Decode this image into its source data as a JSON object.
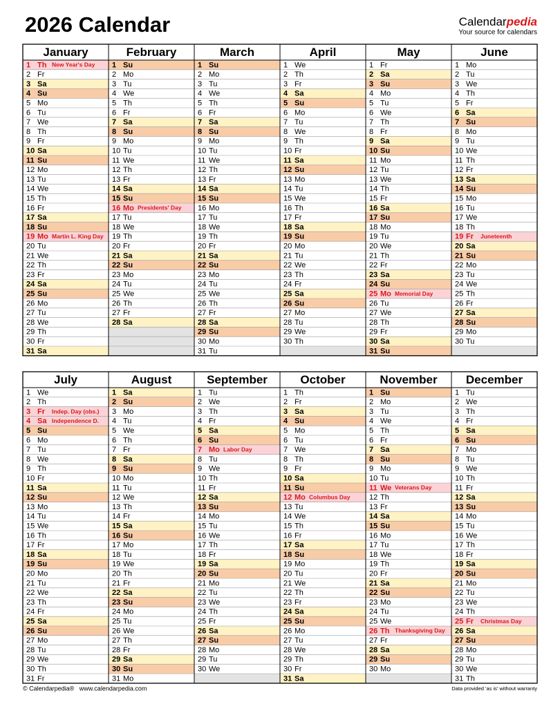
{
  "header": {
    "title": "2026 Calendar",
    "brand": "Calendar",
    "brand_accent": "pedia",
    "tagline": "Your source for calendars"
  },
  "colors": {
    "Sa": "#fff2c4",
    "Su": "#f9cca8",
    "holiday": "#fbd3d6",
    "holiday_text": "#d7191c",
    "empty": "#e3e3e3"
  },
  "months": [
    {
      "name": "January",
      "days": [
        [
          1,
          "Th",
          "New Year's Day"
        ],
        [
          2,
          "Fr"
        ],
        [
          3,
          "Sa"
        ],
        [
          4,
          "Su"
        ],
        [
          5,
          "Mo"
        ],
        [
          6,
          "Tu"
        ],
        [
          7,
          "We"
        ],
        [
          8,
          "Th"
        ],
        [
          9,
          "Fr"
        ],
        [
          10,
          "Sa"
        ],
        [
          11,
          "Su"
        ],
        [
          12,
          "Mo"
        ],
        [
          13,
          "Tu"
        ],
        [
          14,
          "We"
        ],
        [
          15,
          "Th"
        ],
        [
          16,
          "Fr"
        ],
        [
          17,
          "Sa"
        ],
        [
          18,
          "Su"
        ],
        [
          19,
          "Mo",
          "Martin L. King Day"
        ],
        [
          20,
          "Tu"
        ],
        [
          21,
          "We"
        ],
        [
          22,
          "Th"
        ],
        [
          23,
          "Fr"
        ],
        [
          24,
          "Sa"
        ],
        [
          25,
          "Su"
        ],
        [
          26,
          "Mo"
        ],
        [
          27,
          "Tu"
        ],
        [
          28,
          "We"
        ],
        [
          29,
          "Th"
        ],
        [
          30,
          "Fr"
        ],
        [
          31,
          "Sa"
        ]
      ]
    },
    {
      "name": "February",
      "days": [
        [
          1,
          "Su"
        ],
        [
          2,
          "Mo"
        ],
        [
          3,
          "Tu"
        ],
        [
          4,
          "We"
        ],
        [
          5,
          "Th"
        ],
        [
          6,
          "Fr"
        ],
        [
          7,
          "Sa"
        ],
        [
          8,
          "Su"
        ],
        [
          9,
          "Mo"
        ],
        [
          10,
          "Tu"
        ],
        [
          11,
          "We"
        ],
        [
          12,
          "Th"
        ],
        [
          13,
          "Fr"
        ],
        [
          14,
          "Sa"
        ],
        [
          15,
          "Su"
        ],
        [
          16,
          "Mo",
          "Presidents' Day"
        ],
        [
          17,
          "Tu"
        ],
        [
          18,
          "We"
        ],
        [
          19,
          "Th"
        ],
        [
          20,
          "Fr"
        ],
        [
          21,
          "Sa"
        ],
        [
          22,
          "Su"
        ],
        [
          23,
          "Mo"
        ],
        [
          24,
          "Tu"
        ],
        [
          25,
          "We"
        ],
        [
          26,
          "Th"
        ],
        [
          27,
          "Fr"
        ],
        [
          28,
          "Sa"
        ]
      ]
    },
    {
      "name": "March",
      "days": [
        [
          1,
          "Su"
        ],
        [
          2,
          "Mo"
        ],
        [
          3,
          "Tu"
        ],
        [
          4,
          "We"
        ],
        [
          5,
          "Th"
        ],
        [
          6,
          "Fr"
        ],
        [
          7,
          "Sa"
        ],
        [
          8,
          "Su"
        ],
        [
          9,
          "Mo"
        ],
        [
          10,
          "Tu"
        ],
        [
          11,
          "We"
        ],
        [
          12,
          "Th"
        ],
        [
          13,
          "Fr"
        ],
        [
          14,
          "Sa"
        ],
        [
          15,
          "Su"
        ],
        [
          16,
          "Mo"
        ],
        [
          17,
          "Tu"
        ],
        [
          18,
          "We"
        ],
        [
          19,
          "Th"
        ],
        [
          20,
          "Fr"
        ],
        [
          21,
          "Sa"
        ],
        [
          22,
          "Su"
        ],
        [
          23,
          "Mo"
        ],
        [
          24,
          "Tu"
        ],
        [
          25,
          "We"
        ],
        [
          26,
          "Th"
        ],
        [
          27,
          "Fr"
        ],
        [
          28,
          "Sa"
        ],
        [
          29,
          "Su"
        ],
        [
          30,
          "Mo"
        ],
        [
          31,
          "Tu"
        ]
      ]
    },
    {
      "name": "April",
      "days": [
        [
          1,
          "We"
        ],
        [
          2,
          "Th"
        ],
        [
          3,
          "Fr"
        ],
        [
          4,
          "Sa"
        ],
        [
          5,
          "Su"
        ],
        [
          6,
          "Mo"
        ],
        [
          7,
          "Tu"
        ],
        [
          8,
          "We"
        ],
        [
          9,
          "Th"
        ],
        [
          10,
          "Fr"
        ],
        [
          11,
          "Sa"
        ],
        [
          12,
          "Su"
        ],
        [
          13,
          "Mo"
        ],
        [
          14,
          "Tu"
        ],
        [
          15,
          "We"
        ],
        [
          16,
          "Th"
        ],
        [
          17,
          "Fr"
        ],
        [
          18,
          "Sa"
        ],
        [
          19,
          "Su"
        ],
        [
          20,
          "Mo"
        ],
        [
          21,
          "Tu"
        ],
        [
          22,
          "We"
        ],
        [
          23,
          "Th"
        ],
        [
          24,
          "Fr"
        ],
        [
          25,
          "Sa"
        ],
        [
          26,
          "Su"
        ],
        [
          27,
          "Mo"
        ],
        [
          28,
          "Tu"
        ],
        [
          29,
          "We"
        ],
        [
          30,
          "Th"
        ]
      ]
    },
    {
      "name": "May",
      "days": [
        [
          1,
          "Fr"
        ],
        [
          2,
          "Sa"
        ],
        [
          3,
          "Su"
        ],
        [
          4,
          "Mo"
        ],
        [
          5,
          "Tu"
        ],
        [
          6,
          "We"
        ],
        [
          7,
          "Th"
        ],
        [
          8,
          "Fr"
        ],
        [
          9,
          "Sa"
        ],
        [
          10,
          "Su"
        ],
        [
          11,
          "Mo"
        ],
        [
          12,
          "Tu"
        ],
        [
          13,
          "We"
        ],
        [
          14,
          "Th"
        ],
        [
          15,
          "Fr"
        ],
        [
          16,
          "Sa"
        ],
        [
          17,
          "Su"
        ],
        [
          18,
          "Mo"
        ],
        [
          19,
          "Tu"
        ],
        [
          20,
          "We"
        ],
        [
          21,
          "Th"
        ],
        [
          22,
          "Fr"
        ],
        [
          23,
          "Sa"
        ],
        [
          24,
          "Su"
        ],
        [
          25,
          "Mo",
          "Memorial Day"
        ],
        [
          26,
          "Tu"
        ],
        [
          27,
          "We"
        ],
        [
          28,
          "Th"
        ],
        [
          29,
          "Fr"
        ],
        [
          30,
          "Sa"
        ],
        [
          31,
          "Su"
        ]
      ]
    },
    {
      "name": "June",
      "days": [
        [
          1,
          "Mo"
        ],
        [
          2,
          "Tu"
        ],
        [
          3,
          "We"
        ],
        [
          4,
          "Th"
        ],
        [
          5,
          "Fr"
        ],
        [
          6,
          "Sa"
        ],
        [
          7,
          "Su"
        ],
        [
          8,
          "Mo"
        ],
        [
          9,
          "Tu"
        ],
        [
          10,
          "We"
        ],
        [
          11,
          "Th"
        ],
        [
          12,
          "Fr"
        ],
        [
          13,
          "Sa"
        ],
        [
          14,
          "Su"
        ],
        [
          15,
          "Mo"
        ],
        [
          16,
          "Tu"
        ],
        [
          17,
          "We"
        ],
        [
          18,
          "Th"
        ],
        [
          19,
          "Fr",
          "Juneteenth"
        ],
        [
          20,
          "Sa"
        ],
        [
          21,
          "Su"
        ],
        [
          22,
          "Mo"
        ],
        [
          23,
          "Tu"
        ],
        [
          24,
          "We"
        ],
        [
          25,
          "Th"
        ],
        [
          26,
          "Fr"
        ],
        [
          27,
          "Sa"
        ],
        [
          28,
          "Su"
        ],
        [
          29,
          "Mo"
        ],
        [
          30,
          "Tu"
        ]
      ]
    },
    {
      "name": "July",
      "days": [
        [
          1,
          "We"
        ],
        [
          2,
          "Th"
        ],
        [
          3,
          "Fr",
          "Indep. Day (obs.)"
        ],
        [
          4,
          "Sa",
          "Independence D."
        ],
        [
          5,
          "Su"
        ],
        [
          6,
          "Mo"
        ],
        [
          7,
          "Tu"
        ],
        [
          8,
          "We"
        ],
        [
          9,
          "Th"
        ],
        [
          10,
          "Fr"
        ],
        [
          11,
          "Sa"
        ],
        [
          12,
          "Su"
        ],
        [
          13,
          "Mo"
        ],
        [
          14,
          "Tu"
        ],
        [
          15,
          "We"
        ],
        [
          16,
          "Th"
        ],
        [
          17,
          "Fr"
        ],
        [
          18,
          "Sa"
        ],
        [
          19,
          "Su"
        ],
        [
          20,
          "Mo"
        ],
        [
          21,
          "Tu"
        ],
        [
          22,
          "We"
        ],
        [
          23,
          "Th"
        ],
        [
          24,
          "Fr"
        ],
        [
          25,
          "Sa"
        ],
        [
          26,
          "Su"
        ],
        [
          27,
          "Mo"
        ],
        [
          28,
          "Tu"
        ],
        [
          29,
          "We"
        ],
        [
          30,
          "Th"
        ],
        [
          31,
          "Fr"
        ]
      ]
    },
    {
      "name": "August",
      "days": [
        [
          1,
          "Sa"
        ],
        [
          2,
          "Su"
        ],
        [
          3,
          "Mo"
        ],
        [
          4,
          "Tu"
        ],
        [
          5,
          "We"
        ],
        [
          6,
          "Th"
        ],
        [
          7,
          "Fr"
        ],
        [
          8,
          "Sa"
        ],
        [
          9,
          "Su"
        ],
        [
          10,
          "Mo"
        ],
        [
          11,
          "Tu"
        ],
        [
          12,
          "We"
        ],
        [
          13,
          "Th"
        ],
        [
          14,
          "Fr"
        ],
        [
          15,
          "Sa"
        ],
        [
          16,
          "Su"
        ],
        [
          17,
          "Mo"
        ],
        [
          18,
          "Tu"
        ],
        [
          19,
          "We"
        ],
        [
          20,
          "Th"
        ],
        [
          21,
          "Fr"
        ],
        [
          22,
          "Sa"
        ],
        [
          23,
          "Su"
        ],
        [
          24,
          "Mo"
        ],
        [
          25,
          "Tu"
        ],
        [
          26,
          "We"
        ],
        [
          27,
          "Th"
        ],
        [
          28,
          "Fr"
        ],
        [
          29,
          "Sa"
        ],
        [
          30,
          "Su"
        ],
        [
          31,
          "Mo"
        ]
      ]
    },
    {
      "name": "September",
      "days": [
        [
          1,
          "Tu"
        ],
        [
          2,
          "We"
        ],
        [
          3,
          "Th"
        ],
        [
          4,
          "Fr"
        ],
        [
          5,
          "Sa"
        ],
        [
          6,
          "Su"
        ],
        [
          7,
          "Mo",
          "Labor Day"
        ],
        [
          8,
          "Tu"
        ],
        [
          9,
          "We"
        ],
        [
          10,
          "Th"
        ],
        [
          11,
          "Fr"
        ],
        [
          12,
          "Sa"
        ],
        [
          13,
          "Su"
        ],
        [
          14,
          "Mo"
        ],
        [
          15,
          "Tu"
        ],
        [
          16,
          "We"
        ],
        [
          17,
          "Th"
        ],
        [
          18,
          "Fr"
        ],
        [
          19,
          "Sa"
        ],
        [
          20,
          "Su"
        ],
        [
          21,
          "Mo"
        ],
        [
          22,
          "Tu"
        ],
        [
          23,
          "We"
        ],
        [
          24,
          "Th"
        ],
        [
          25,
          "Fr"
        ],
        [
          26,
          "Sa"
        ],
        [
          27,
          "Su"
        ],
        [
          28,
          "Mo"
        ],
        [
          29,
          "Tu"
        ],
        [
          30,
          "We"
        ]
      ]
    },
    {
      "name": "October",
      "days": [
        [
          1,
          "Th"
        ],
        [
          2,
          "Fr"
        ],
        [
          3,
          "Sa"
        ],
        [
          4,
          "Su"
        ],
        [
          5,
          "Mo"
        ],
        [
          6,
          "Tu"
        ],
        [
          7,
          "We"
        ],
        [
          8,
          "Th"
        ],
        [
          9,
          "Fr"
        ],
        [
          10,
          "Sa"
        ],
        [
          11,
          "Su"
        ],
        [
          12,
          "Mo",
          "Columbus Day"
        ],
        [
          13,
          "Tu"
        ],
        [
          14,
          "We"
        ],
        [
          15,
          "Th"
        ],
        [
          16,
          "Fr"
        ],
        [
          17,
          "Sa"
        ],
        [
          18,
          "Su"
        ],
        [
          19,
          "Mo"
        ],
        [
          20,
          "Tu"
        ],
        [
          21,
          "We"
        ],
        [
          22,
          "Th"
        ],
        [
          23,
          "Fr"
        ],
        [
          24,
          "Sa"
        ],
        [
          25,
          "Su"
        ],
        [
          26,
          "Mo"
        ],
        [
          27,
          "Tu"
        ],
        [
          28,
          "We"
        ],
        [
          29,
          "Th"
        ],
        [
          30,
          "Fr"
        ],
        [
          31,
          "Sa"
        ]
      ]
    },
    {
      "name": "November",
      "days": [
        [
          1,
          "Su"
        ],
        [
          2,
          "Mo"
        ],
        [
          3,
          "Tu"
        ],
        [
          4,
          "We"
        ],
        [
          5,
          "Th"
        ],
        [
          6,
          "Fr"
        ],
        [
          7,
          "Sa"
        ],
        [
          8,
          "Su"
        ],
        [
          9,
          "Mo"
        ],
        [
          10,
          "Tu"
        ],
        [
          11,
          "We",
          "Veterans Day"
        ],
        [
          12,
          "Th"
        ],
        [
          13,
          "Fr"
        ],
        [
          14,
          "Sa"
        ],
        [
          15,
          "Su"
        ],
        [
          16,
          "Mo"
        ],
        [
          17,
          "Tu"
        ],
        [
          18,
          "We"
        ],
        [
          19,
          "Th"
        ],
        [
          20,
          "Fr"
        ],
        [
          21,
          "Sa"
        ],
        [
          22,
          "Su"
        ],
        [
          23,
          "Mo"
        ],
        [
          24,
          "Tu"
        ],
        [
          25,
          "We"
        ],
        [
          26,
          "Th",
          "Thanksgiving Day"
        ],
        [
          27,
          "Fr"
        ],
        [
          28,
          "Sa"
        ],
        [
          29,
          "Su"
        ],
        [
          30,
          "Mo"
        ]
      ]
    },
    {
      "name": "December",
      "days": [
        [
          1,
          "Tu"
        ],
        [
          2,
          "We"
        ],
        [
          3,
          "Th"
        ],
        [
          4,
          "Fr"
        ],
        [
          5,
          "Sa"
        ],
        [
          6,
          "Su"
        ],
        [
          7,
          "Mo"
        ],
        [
          8,
          "Tu"
        ],
        [
          9,
          "We"
        ],
        [
          10,
          "Th"
        ],
        [
          11,
          "Fr"
        ],
        [
          12,
          "Sa"
        ],
        [
          13,
          "Su"
        ],
        [
          14,
          "Mo"
        ],
        [
          15,
          "Tu"
        ],
        [
          16,
          "We"
        ],
        [
          17,
          "Th"
        ],
        [
          18,
          "Fr"
        ],
        [
          19,
          "Sa"
        ],
        [
          20,
          "Su"
        ],
        [
          21,
          "Mo"
        ],
        [
          22,
          "Tu"
        ],
        [
          23,
          "We"
        ],
        [
          24,
          "Th"
        ],
        [
          25,
          "Fr",
          "Christmas Day"
        ],
        [
          26,
          "Sa"
        ],
        [
          27,
          "Su"
        ],
        [
          28,
          "Mo"
        ],
        [
          29,
          "Tu"
        ],
        [
          30,
          "We"
        ],
        [
          31,
          "Th"
        ]
      ]
    }
  ],
  "footer": {
    "left": "© Calendarpedia®   www.calendarpedia.com",
    "right": "Data provided 'as is' without warranty"
  }
}
